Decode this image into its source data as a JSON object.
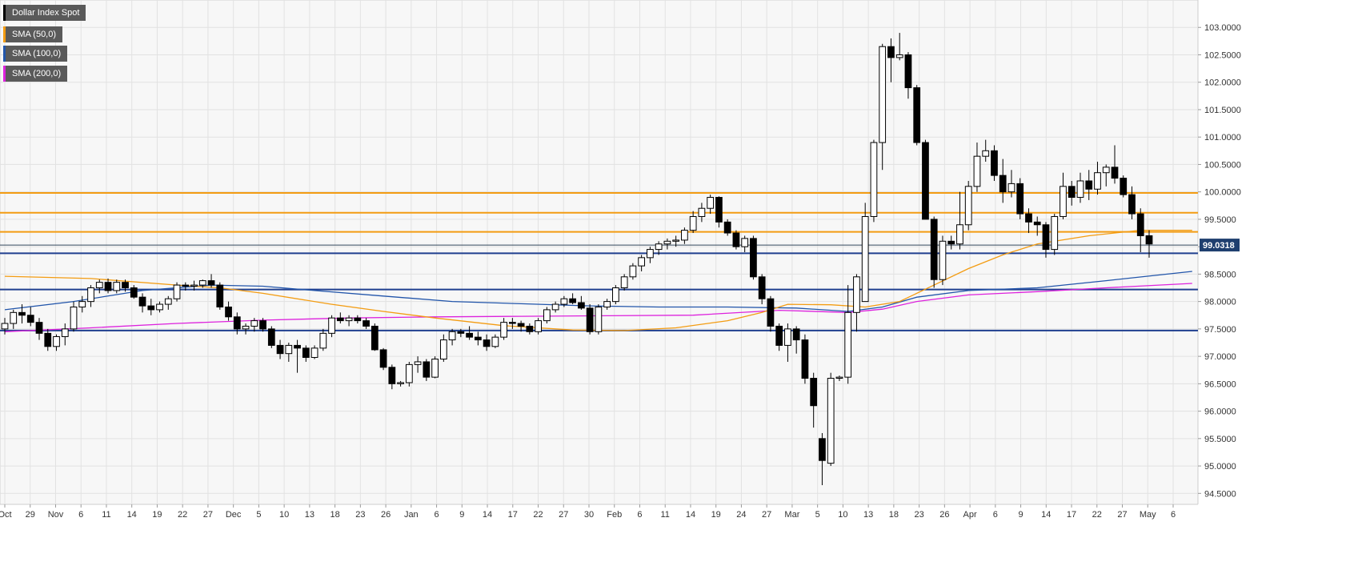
{
  "legend": {
    "instrument": "Dollar Index Spot",
    "sma50": "SMA (50,0)",
    "sma100": "SMA (100,0)",
    "sma200": "SMA (200,0)"
  },
  "colors": {
    "instrument": "#000000",
    "sma50": "#f39c12",
    "sma100": "#2255aa",
    "sma200": "#dd22dd",
    "resistance": "#f39c12",
    "support": "#1f3f8f",
    "background": "#f7f7f7",
    "grid": "#e2e2e2"
  },
  "chart_data": {
    "type": "candlestick",
    "title": "Dollar Index Spot",
    "last_price_label": "99.0318",
    "ylim": [
      94.3,
      103.5
    ],
    "y_ticks": [
      "94.5000",
      "95.0000",
      "95.5000",
      "96.0000",
      "96.5000",
      "97.0000",
      "97.5000",
      "98.0000",
      "98.5000",
      "99.0000",
      "99.5000",
      "100.0000",
      "100.5000",
      "101.0000",
      "101.5000",
      "102.0000",
      "102.5000",
      "103.0000"
    ],
    "x_ticks": [
      "Oct",
      "29",
      "Nov",
      "6",
      "11",
      "14",
      "19",
      "22",
      "27",
      "Dec",
      "5",
      "10",
      "13",
      "18",
      "23",
      "26",
      "Jan",
      "6",
      "9",
      "14",
      "17",
      "22",
      "27",
      "30",
      "Feb",
      "6",
      "11",
      "14",
      "19",
      "24",
      "27",
      "Mar",
      "5",
      "10",
      "13",
      "18",
      "23",
      "26",
      "Apr",
      "6",
      "9",
      "14",
      "17",
      "22",
      "27",
      "May",
      "6"
    ],
    "horizontal_levels": {
      "resistance": [
        99.98,
        99.62,
        99.27
      ],
      "support": [
        98.88,
        98.22,
        97.47
      ],
      "current": 99.03
    },
    "candles": [
      [
        97.5,
        97.7,
        97.4,
        97.6
      ],
      [
        97.6,
        97.85,
        97.5,
        97.8
      ],
      [
        97.8,
        97.95,
        97.6,
        97.75
      ],
      [
        97.75,
        97.9,
        97.55,
        97.62
      ],
      [
        97.62,
        97.7,
        97.3,
        97.42
      ],
      [
        97.42,
        97.5,
        97.1,
        97.18
      ],
      [
        97.18,
        97.4,
        97.1,
        97.36
      ],
      [
        97.36,
        97.6,
        97.2,
        97.5
      ],
      [
        97.5,
        98.0,
        97.45,
        97.9
      ],
      [
        97.9,
        98.1,
        97.8,
        98.0
      ],
      [
        98.0,
        98.3,
        97.9,
        98.25
      ],
      [
        98.25,
        98.4,
        98.15,
        98.35
      ],
      [
        98.35,
        98.42,
        98.15,
        98.2
      ],
      [
        98.2,
        98.4,
        98.15,
        98.35
      ],
      [
        98.35,
        98.4,
        98.18,
        98.25
      ],
      [
        98.25,
        98.3,
        98.05,
        98.08
      ],
      [
        98.08,
        98.15,
        97.8,
        97.92
      ],
      [
        97.92,
        98.05,
        97.75,
        97.85
      ],
      [
        97.85,
        98.0,
        97.8,
        97.95
      ],
      [
        97.95,
        98.1,
        97.85,
        98.05
      ],
      [
        98.05,
        98.35,
        98.0,
        98.3
      ],
      [
        98.3,
        98.35,
        98.2,
        98.28
      ],
      [
        98.28,
        98.38,
        98.2,
        98.3
      ],
      [
        98.3,
        98.4,
        98.25,
        98.38
      ],
      [
        98.38,
        98.5,
        98.25,
        98.3
      ],
      [
        98.3,
        98.35,
        97.85,
        97.9
      ],
      [
        97.9,
        98.0,
        97.65,
        97.72
      ],
      [
        97.72,
        97.8,
        97.4,
        97.5
      ],
      [
        97.5,
        97.6,
        97.4,
        97.55
      ],
      [
        97.55,
        97.7,
        97.45,
        97.65
      ],
      [
        97.65,
        97.7,
        97.45,
        97.5
      ],
      [
        97.5,
        97.55,
        97.15,
        97.2
      ],
      [
        97.2,
        97.3,
        96.95,
        97.05
      ],
      [
        97.05,
        97.25,
        96.9,
        97.2
      ],
      [
        97.2,
        97.3,
        96.7,
        97.15
      ],
      [
        97.15,
        97.2,
        96.9,
        96.98
      ],
      [
        96.98,
        97.2,
        96.95,
        97.15
      ],
      [
        97.15,
        97.5,
        97.1,
        97.42
      ],
      [
        97.42,
        97.75,
        97.35,
        97.7
      ],
      [
        97.7,
        97.8,
        97.6,
        97.65
      ],
      [
        97.65,
        97.75,
        97.55,
        97.7
      ],
      [
        97.7,
        97.75,
        97.6,
        97.65
      ],
      [
        97.65,
        97.7,
        97.5,
        97.55
      ],
      [
        97.55,
        97.6,
        97.1,
        97.12
      ],
      [
        97.12,
        97.15,
        96.75,
        96.8
      ],
      [
        96.8,
        96.85,
        96.4,
        96.5
      ],
      [
        96.5,
        96.55,
        96.45,
        96.52
      ],
      [
        96.52,
        96.9,
        96.45,
        96.85
      ],
      [
        96.85,
        97.0,
        96.7,
        96.9
      ],
      [
        96.9,
        96.95,
        96.55,
        96.62
      ],
      [
        96.62,
        97.0,
        96.6,
        96.95
      ],
      [
        96.95,
        97.4,
        96.9,
        97.3
      ],
      [
        97.3,
        97.5,
        97.2,
        97.45
      ],
      [
        97.45,
        97.5,
        97.35,
        97.42
      ],
      [
        97.42,
        97.55,
        97.3,
        97.35
      ],
      [
        97.35,
        97.45,
        97.2,
        97.3
      ],
      [
        97.3,
        97.4,
        97.1,
        97.18
      ],
      [
        97.18,
        97.4,
        97.15,
        97.35
      ],
      [
        97.35,
        97.7,
        97.3,
        97.62
      ],
      [
        97.62,
        97.7,
        97.5,
        97.6
      ],
      [
        97.6,
        97.65,
        97.45,
        97.55
      ],
      [
        97.55,
        97.6,
        97.4,
        97.45
      ],
      [
        97.45,
        97.7,
        97.4,
        97.65
      ],
      [
        97.65,
        97.9,
        97.6,
        97.85
      ],
      [
        97.85,
        98.0,
        97.8,
        97.95
      ],
      [
        97.95,
        98.1,
        97.9,
        98.05
      ],
      [
        98.05,
        98.15,
        97.95,
        97.98
      ],
      [
        97.98,
        98.1,
        97.85,
        97.88
      ],
      [
        97.88,
        97.95,
        97.4,
        97.45
      ],
      [
        97.45,
        97.95,
        97.4,
        97.9
      ],
      [
        97.9,
        98.05,
        97.85,
        98.0
      ],
      [
        98.0,
        98.3,
        97.95,
        98.25
      ],
      [
        98.25,
        98.5,
        98.2,
        98.45
      ],
      [
        98.45,
        98.7,
        98.4,
        98.65
      ],
      [
        98.65,
        98.85,
        98.55,
        98.8
      ],
      [
        98.8,
        99.0,
        98.7,
        98.95
      ],
      [
        98.95,
        99.1,
        98.85,
        99.05
      ],
      [
        99.05,
        99.15,
        98.95,
        99.1
      ],
      [
        99.1,
        99.2,
        99.0,
        99.12
      ],
      [
        99.12,
        99.35,
        99.05,
        99.3
      ],
      [
        99.3,
        99.65,
        99.25,
        99.55
      ],
      [
        99.55,
        99.8,
        99.45,
        99.7
      ],
      [
        99.7,
        99.95,
        99.6,
        99.9
      ],
      [
        99.9,
        99.92,
        99.35,
        99.45
      ],
      [
        99.45,
        99.5,
        99.2,
        99.25
      ],
      [
        99.25,
        99.3,
        98.95,
        99.0
      ],
      [
        99.0,
        99.2,
        98.9,
        99.15
      ],
      [
        99.15,
        99.2,
        98.4,
        98.45
      ],
      [
        98.45,
        98.5,
        97.95,
        98.05
      ],
      [
        98.05,
        98.1,
        97.45,
        97.55
      ],
      [
        97.55,
        97.6,
        97.1,
        97.2
      ],
      [
        97.2,
        97.6,
        96.9,
        97.5
      ],
      [
        97.5,
        97.55,
        97.05,
        97.3
      ],
      [
        97.3,
        97.4,
        96.5,
        96.6
      ],
      [
        96.6,
        96.7,
        95.7,
        96.1
      ],
      [
        95.5,
        95.6,
        94.65,
        95.1
      ],
      [
        95.05,
        96.7,
        95.0,
        96.6
      ],
      [
        96.6,
        96.65,
        96.55,
        96.62
      ],
      [
        96.62,
        98.3,
        96.5,
        97.8
      ],
      [
        97.8,
        98.5,
        97.45,
        98.45
      ],
      [
        98.0,
        99.8,
        98.0,
        99.55
      ],
      [
        99.55,
        100.95,
        99.45,
        100.9
      ],
      [
        100.9,
        102.7,
        100.4,
        102.65
      ],
      [
        102.65,
        102.8,
        102.0,
        102.45
      ],
      [
        102.45,
        102.9,
        102.4,
        102.5
      ],
      [
        102.5,
        102.55,
        101.7,
        101.9
      ],
      [
        101.9,
        101.95,
        100.85,
        100.9
      ],
      [
        100.9,
        100.95,
        99.5,
        99.5
      ],
      [
        99.5,
        99.55,
        98.25,
        98.4
      ],
      [
        98.4,
        99.2,
        98.3,
        99.1
      ],
      [
        99.1,
        99.2,
        98.95,
        99.05
      ],
      [
        99.05,
        100.0,
        98.95,
        99.4
      ],
      [
        99.4,
        100.2,
        99.3,
        100.1
      ],
      [
        100.1,
        100.9,
        100.0,
        100.65
      ],
      [
        100.65,
        100.95,
        100.55,
        100.75
      ],
      [
        100.75,
        100.85,
        100.2,
        100.3
      ],
      [
        100.3,
        100.6,
        99.8,
        100.0
      ],
      [
        100.0,
        100.4,
        99.9,
        100.15
      ],
      [
        100.15,
        100.25,
        99.5,
        99.6
      ],
      [
        99.6,
        99.7,
        99.25,
        99.45
      ],
      [
        99.45,
        99.55,
        99.2,
        99.4
      ],
      [
        99.4,
        99.45,
        98.8,
        98.95
      ],
      [
        98.95,
        99.6,
        98.85,
        99.55
      ],
      [
        99.55,
        100.35,
        99.5,
        100.1
      ],
      [
        100.1,
        100.2,
        99.75,
        99.9
      ],
      [
        99.9,
        100.35,
        99.8,
        100.2
      ],
      [
        100.2,
        100.4,
        99.85,
        100.05
      ],
      [
        100.05,
        100.55,
        99.95,
        100.35
      ],
      [
        100.35,
        100.5,
        100.1,
        100.45
      ],
      [
        100.45,
        100.85,
        100.15,
        100.25
      ],
      [
        100.25,
        100.3,
        99.9,
        99.95
      ],
      [
        99.95,
        100.1,
        99.5,
        99.6
      ],
      [
        99.6,
        99.7,
        98.9,
        99.2
      ],
      [
        99.2,
        99.3,
        98.8,
        99.05
      ]
    ],
    "sma50": [
      [
        0,
        98.46
      ],
      [
        10,
        98.42
      ],
      [
        20,
        98.3
      ],
      [
        25,
        98.25
      ],
      [
        30,
        98.15
      ],
      [
        38,
        97.95
      ],
      [
        44,
        97.82
      ],
      [
        50,
        97.7
      ],
      [
        58,
        97.56
      ],
      [
        66,
        97.48
      ],
      [
        72,
        97.47
      ],
      [
        78,
        97.52
      ],
      [
        84,
        97.65
      ],
      [
        88,
        97.8
      ],
      [
        91,
        97.95
      ],
      [
        96,
        97.94
      ],
      [
        100,
        97.9
      ],
      [
        104,
        98.0
      ],
      [
        108,
        98.3
      ],
      [
        112,
        98.6
      ],
      [
        116,
        98.85
      ],
      [
        120,
        99.05
      ],
      [
        126,
        99.2
      ],
      [
        132,
        99.3
      ],
      [
        138,
        99.3
      ]
    ],
    "sma100": [
      [
        0,
        97.85
      ],
      [
        8,
        98.0
      ],
      [
        16,
        98.2
      ],
      [
        24,
        98.3
      ],
      [
        30,
        98.28
      ],
      [
        36,
        98.2
      ],
      [
        44,
        98.1
      ],
      [
        52,
        98.0
      ],
      [
        60,
        97.96
      ],
      [
        68,
        97.92
      ],
      [
        76,
        97.9
      ],
      [
        84,
        97.9
      ],
      [
        92,
        97.88
      ],
      [
        98,
        97.82
      ],
      [
        102,
        97.9
      ],
      [
        106,
        98.08
      ],
      [
        112,
        98.2
      ],
      [
        120,
        98.25
      ],
      [
        128,
        98.38
      ],
      [
        138,
        98.55
      ]
    ],
    "sma200": [
      [
        0,
        97.45
      ],
      [
        10,
        97.52
      ],
      [
        20,
        97.6
      ],
      [
        30,
        97.66
      ],
      [
        40,
        97.7
      ],
      [
        50,
        97.72
      ],
      [
        60,
        97.73
      ],
      [
        70,
        97.74
      ],
      [
        80,
        97.75
      ],
      [
        90,
        97.84
      ],
      [
        98,
        97.8
      ],
      [
        102,
        97.86
      ],
      [
        106,
        98.0
      ],
      [
        112,
        98.12
      ],
      [
        120,
        98.18
      ],
      [
        128,
        98.25
      ],
      [
        138,
        98.33
      ]
    ]
  }
}
